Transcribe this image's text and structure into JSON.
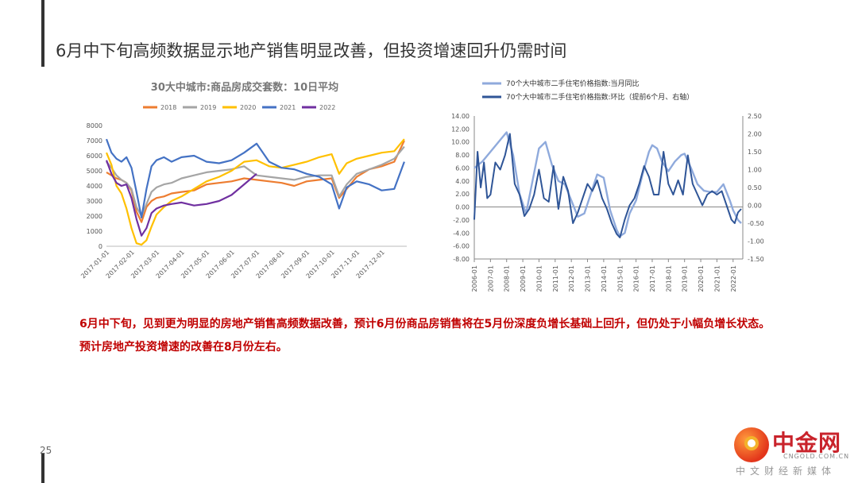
{
  "page": {
    "title": "6月中下旬高频数据显示地产销售明显改善，但投资增速回升仍需时间",
    "page_number": "25"
  },
  "body": {
    "paragraphs": [
      "6月中下旬，见到更为明显的房地产销售高频数据改善，预计6月份商品房销售将在5月份深度负增长基础上回升，但仍处于小幅负增长状态。",
      "预计房地产投资增速的改善在8月份左右。"
    ]
  },
  "watermark": {
    "name": "中金网",
    "domain": "CNGOLD.COM.CN",
    "tagline": "中文财经新媒体"
  },
  "chart_data": [
    {
      "type": "line",
      "title": "30大中城市:商品房成交套数：10日平均",
      "legend_position": "top",
      "xlabel": "",
      "ylabel": "",
      "ylim": [
        0,
        8000
      ],
      "yticks": [
        "0",
        "1000",
        "2000",
        "3000",
        "4000",
        "5000",
        "6000",
        "7000",
        "8000"
      ],
      "x_tick_labels": [
        "2017-01-01",
        "2017-02-01",
        "2017-03-01",
        "2017-04-01",
        "2017-05-01",
        "2017-06-01",
        "2017-07-01",
        "2017-08-01",
        "2017-09-01",
        "2017-10-01",
        "2017-11-01",
        "2017-12-01"
      ],
      "x_axis_months": [
        1,
        13
      ],
      "series": [
        {
          "name": "2018",
          "color": "#ed7d31",
          "x": [
            1.0,
            1.2,
            1.4,
            1.6,
            1.8,
            2.0,
            2.2,
            2.4,
            2.6,
            2.8,
            3.0,
            3.3,
            3.6,
            4.0,
            4.5,
            5.0,
            5.5,
            6.0,
            6.5,
            7.0,
            7.5,
            8.0,
            8.5,
            9.0,
            9.5,
            10.0,
            10.3,
            10.6,
            11.0,
            11.5,
            12.0,
            12.5,
            12.9
          ],
          "y": [
            4900,
            4700,
            4500,
            4400,
            4200,
            3700,
            2300,
            1600,
            2600,
            3000,
            3200,
            3300,
            3500,
            3600,
            3700,
            4100,
            4200,
            4300,
            4500,
            4400,
            4300,
            4200,
            4000,
            4300,
            4400,
            4500,
            3200,
            3800,
            4600,
            5100,
            5300,
            5600,
            7000
          ]
        },
        {
          "name": "2019",
          "color": "#a5a5a5",
          "x": [
            1.0,
            1.2,
            1.4,
            1.6,
            1.8,
            2.0,
            2.2,
            2.4,
            2.6,
            2.8,
            3.0,
            3.3,
            3.6,
            4.0,
            4.5,
            5.0,
            5.5,
            6.0,
            6.5,
            7.0,
            7.5,
            8.0,
            8.5,
            9.0,
            9.5,
            10.0,
            10.3,
            10.6,
            11.0,
            11.5,
            12.0,
            12.5,
            12.9
          ],
          "y": [
            5600,
            5200,
            4700,
            4400,
            4200,
            3800,
            2600,
            2000,
            2800,
            3600,
            3900,
            4100,
            4200,
            4500,
            4700,
            4900,
            5000,
            5100,
            5300,
            4700,
            4600,
            4500,
            4400,
            4600,
            4700,
            4700,
            3300,
            4100,
            4800,
            5100,
            5400,
            5800,
            6600
          ]
        },
        {
          "name": "2020",
          "color": "#ffc000",
          "x": [
            1.0,
            1.2,
            1.4,
            1.6,
            1.8,
            2.0,
            2.2,
            2.4,
            2.6,
            2.8,
            3.0,
            3.3,
            3.6,
            4.0,
            4.5,
            5.0,
            5.5,
            6.0,
            6.5,
            7.0,
            7.5,
            8.0,
            8.5,
            9.0,
            9.5,
            10.0,
            10.3,
            10.6,
            11.0,
            11.5,
            12.0,
            12.5,
            12.9
          ],
          "y": [
            6200,
            5400,
            4000,
            3500,
            2500,
            1200,
            200,
            100,
            400,
            1300,
            2100,
            2600,
            3000,
            3300,
            3800,
            4300,
            4600,
            5000,
            5600,
            5700,
            5300,
            5200,
            5400,
            5600,
            5900,
            6100,
            4800,
            5500,
            5800,
            6000,
            6200,
            6300,
            7100
          ]
        },
        {
          "name": "2021",
          "color": "#4472c4",
          "x": [
            1.0,
            1.2,
            1.4,
            1.6,
            1.8,
            2.0,
            2.2,
            2.4,
            2.6,
            2.8,
            3.0,
            3.3,
            3.6,
            4.0,
            4.5,
            5.0,
            5.5,
            6.0,
            6.5,
            7.0,
            7.5,
            8.0,
            8.5,
            9.0,
            9.5,
            10.0,
            10.3,
            10.6,
            11.0,
            11.5,
            12.0,
            12.5,
            12.9
          ],
          "y": [
            7100,
            6200,
            5800,
            5600,
            5900,
            5200,
            3600,
            1900,
            3800,
            5300,
            5700,
            5900,
            5600,
            5900,
            6000,
            5600,
            5500,
            5700,
            6200,
            6800,
            5600,
            5200,
            5100,
            4800,
            4600,
            4100,
            2500,
            3900,
            4300,
            4100,
            3700,
            3800,
            5600
          ]
        },
        {
          "name": "2022",
          "color": "#7030a0",
          "x": [
            1.0,
            1.2,
            1.4,
            1.6,
            1.8,
            2.0,
            2.2,
            2.4,
            2.6,
            2.8,
            3.0,
            3.3,
            3.6,
            4.0,
            4.5,
            5.0,
            5.5,
            6.0,
            6.5,
            7.0
          ],
          "y": [
            5700,
            4800,
            4200,
            4000,
            4100,
            3200,
            1800,
            700,
            1200,
            2200,
            2500,
            2700,
            2800,
            2900,
            2700,
            2800,
            3000,
            3400,
            4100,
            4800
          ]
        }
      ]
    },
    {
      "type": "line",
      "title": "",
      "legend_position": "top-left",
      "xlabel": "",
      "ylabel": "",
      "ylim_left": [
        -8,
        14
      ],
      "ylim_right": [
        -1.5,
        2.5
      ],
      "yticks_left": [
        "14.00",
        "12.00",
        "10.00",
        "8.00",
        "6.00",
        "4.00",
        "2.00",
        "0.00",
        "-2.00",
        "-4.00",
        "-6.00",
        "-8.00"
      ],
      "yticks_right": [
        "2.50",
        "2.00",
        "1.50",
        "1.00",
        "0.50",
        "0.00",
        "-0.50",
        "-1.00",
        "-1.50"
      ],
      "x_tick_labels": [
        "2006-01",
        "2007-01",
        "2008-01",
        "2009-01",
        "2010-01",
        "2011-01",
        "2012-01",
        "2013-01",
        "2014-01",
        "2015-01",
        "2016-01",
        "2017-01",
        "2018-01",
        "2019-01",
        "2020-01",
        "2021-01",
        "2022-01"
      ],
      "x_axis_years": [
        2006,
        2022.6
      ],
      "series": [
        {
          "name": "70个大中城市二手住宅价格指数:当月同比",
          "color": "#8faadc",
          "axis": "left",
          "x": [
            2006.0,
            2006.5,
            2007.0,
            2007.5,
            2008.0,
            2008.4,
            2008.8,
            2009.2,
            2009.6,
            2010.0,
            2010.4,
            2010.8,
            2011.2,
            2011.6,
            2012.0,
            2012.4,
            2012.8,
            2013.2,
            2013.6,
            2014.0,
            2014.4,
            2014.8,
            2015.0,
            2015.3,
            2015.6,
            2016.0,
            2016.4,
            2016.8,
            2017.0,
            2017.3,
            2017.6,
            2018.0,
            2018.4,
            2018.8,
            2019.0,
            2019.4,
            2019.8,
            2020.2,
            2020.6,
            2021.0,
            2021.4,
            2021.8,
            2022.0,
            2022.3,
            2022.5
          ],
          "y": [
            6.0,
            7.0,
            8.5,
            10.0,
            11.5,
            8.0,
            2.0,
            -1.0,
            4.0,
            9.0,
            10.0,
            6.5,
            4.0,
            3.5,
            1.0,
            -1.5,
            -1.0,
            2.0,
            5.0,
            4.5,
            -0.5,
            -3.5,
            -4.5,
            -4.0,
            -1.0,
            1.0,
            5.0,
            8.5,
            9.5,
            9.0,
            7.0,
            5.5,
            7.0,
            8.0,
            8.2,
            6.0,
            3.5,
            2.5,
            2.3,
            2.3,
            3.5,
            1.0,
            -0.5,
            -2.0,
            -2.5
          ]
        },
        {
          "name": "70个大中城市二手住宅价格指数:环比（提前6个月、右轴）",
          "color": "#2f5597",
          "axis": "right",
          "x": [
            2006.0,
            2006.2,
            2006.4,
            2006.6,
            2006.8,
            2007.0,
            2007.3,
            2007.6,
            2007.9,
            2008.2,
            2008.5,
            2008.8,
            2009.1,
            2009.4,
            2009.7,
            2010.0,
            2010.3,
            2010.6,
            2010.9,
            2011.2,
            2011.5,
            2011.8,
            2012.1,
            2012.4,
            2012.7,
            2013.0,
            2013.3,
            2013.6,
            2013.9,
            2014.2,
            2014.5,
            2014.8,
            2015.0,
            2015.3,
            2015.6,
            2015.9,
            2016.2,
            2016.5,
            2016.8,
            2017.1,
            2017.4,
            2017.7,
            2018.0,
            2018.3,
            2018.6,
            2018.9,
            2019.2,
            2019.5,
            2019.8,
            2020.1,
            2020.4,
            2020.7,
            2021.0,
            2021.3,
            2021.6,
            2021.9,
            2022.1,
            2022.3,
            2022.5
          ],
          "y": [
            -0.4,
            1.5,
            0.5,
            1.2,
            0.2,
            0.3,
            1.2,
            1.0,
            1.4,
            2.0,
            0.6,
            0.3,
            -0.3,
            -0.1,
            0.3,
            1.0,
            0.2,
            0.1,
            1.1,
            -0.1,
            0.8,
            0.4,
            -0.5,
            -0.2,
            0.2,
            0.6,
            0.4,
            0.7,
            0.2,
            -0.1,
            -0.5,
            -0.8,
            -0.9,
            -0.4,
            0.0,
            0.2,
            0.6,
            1.1,
            0.8,
            0.3,
            0.3,
            1.5,
            0.6,
            0.3,
            0.7,
            0.3,
            1.4,
            0.6,
            0.3,
            0.0,
            0.3,
            0.4,
            0.3,
            0.4,
            0.0,
            -0.4,
            -0.5,
            -0.2,
            -0.1
          ]
        }
      ]
    }
  ]
}
